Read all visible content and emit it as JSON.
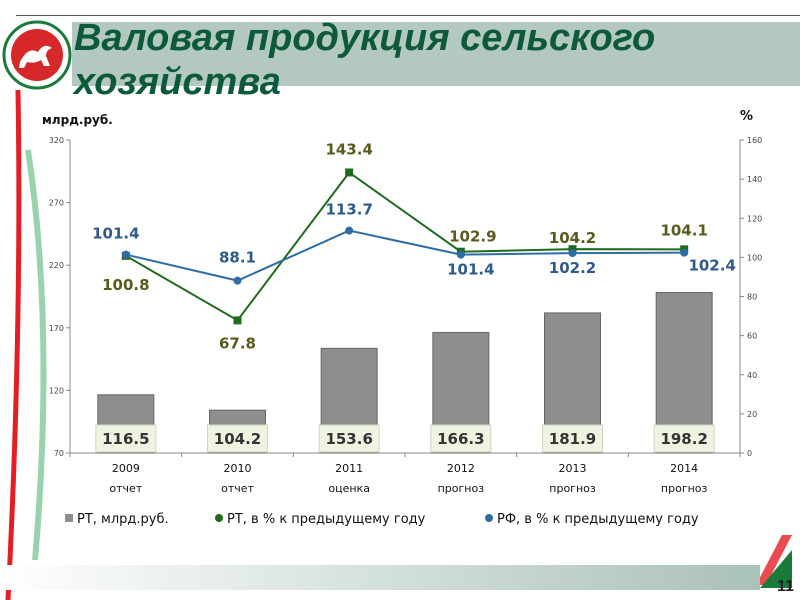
{
  "slide": {
    "title_line1": "Валовая продукция сельского",
    "title_line2": "хозяйства",
    "page_number": "11"
  },
  "colors": {
    "bar": "#8e8e8e",
    "rt_line": "#1e6b1e",
    "rf_line": "#2e6da4",
    "label_box": "#eef3e2"
  },
  "chart_data": {
    "type": "bar",
    "ylabel": "млрд.руб.",
    "y2label": "%",
    "ylim": [
      70,
      320
    ],
    "yticks": [
      70,
      120,
      170,
      220,
      270,
      320
    ],
    "y2lim": [
      0,
      160
    ],
    "y2ticks": [
      0,
      20,
      40,
      60,
      80,
      100,
      120,
      140,
      160
    ],
    "categories": [
      [
        "2009",
        "отчет"
      ],
      [
        "2010",
        "отчет"
      ],
      [
        "2011",
        "оценка"
      ],
      [
        "2012",
        "прогноз"
      ],
      [
        "2013",
        "прогноз"
      ],
      [
        "2014",
        "прогноз"
      ]
    ],
    "series": [
      {
        "name": "РТ, млрд.руб.",
        "type": "bar",
        "axis": "left",
        "values": [
          116.5,
          104.2,
          153.6,
          166.3,
          181.9,
          198.2
        ]
      },
      {
        "name": "РТ, в % к предыдущему году",
        "type": "line",
        "axis": "right",
        "values": [
          100.8,
          67.8,
          143.4,
          102.9,
          104.2,
          104.1
        ]
      },
      {
        "name": "РФ, в % к предыдущему году",
        "type": "line",
        "axis": "right",
        "values": [
          101.4,
          88.1,
          113.7,
          101.4,
          102.2,
          102.4
        ]
      }
    ],
    "legend": "bottom"
  }
}
